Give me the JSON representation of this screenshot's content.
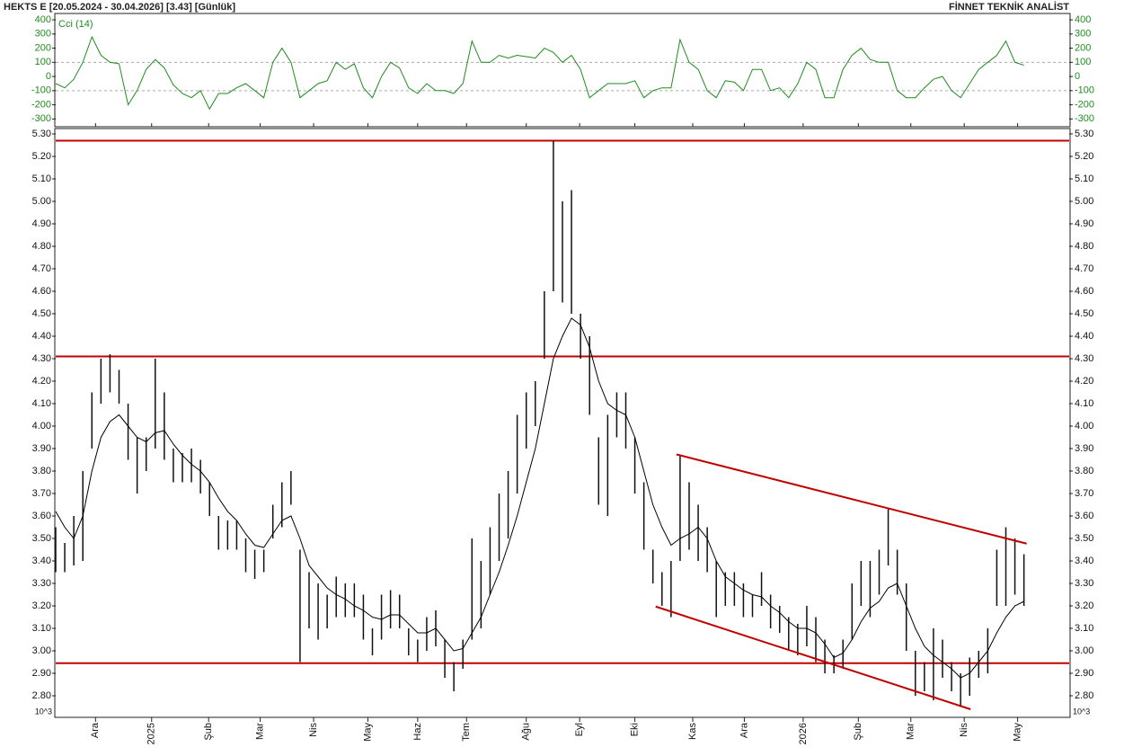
{
  "header": {
    "title": "HEKTS E  [20.05.2024 - 30.04.2026]  [3.43]  [Günlük]",
    "brand": "FİNNET TEKNİK ANALİST"
  },
  "chart_data": [
    {
      "type": "line",
      "label": "Cci (14)",
      "color": "#1e8c1e",
      "x": [
        0,
        1,
        2,
        3,
        4,
        5,
        6,
        7,
        8,
        9,
        10,
        11,
        12,
        13,
        14,
        15,
        16,
        17,
        18,
        19,
        20,
        21,
        22,
        23,
        24,
        25,
        26,
        27,
        28,
        29,
        30,
        31,
        32,
        33,
        34,
        35,
        36,
        37,
        38,
        39,
        40,
        41,
        42,
        43,
        44,
        45,
        46,
        47,
        48,
        49,
        50,
        51,
        52,
        53,
        54,
        55,
        56,
        57,
        58,
        59,
        60,
        61,
        62,
        63,
        64,
        65,
        66,
        67,
        68,
        69,
        70,
        71,
        72,
        73,
        74,
        75,
        76,
        77,
        78,
        79,
        80,
        81,
        82,
        83,
        84,
        85,
        86,
        87,
        88,
        89,
        90,
        91,
        92,
        93,
        94,
        95,
        96,
        97,
        98,
        99,
        100,
        101,
        102,
        103,
        104,
        105,
        106,
        107
      ],
      "values": [
        -50,
        -80,
        -20,
        100,
        280,
        150,
        100,
        90,
        -200,
        -100,
        50,
        120,
        60,
        -60,
        -120,
        -150,
        -100,
        -230,
        -120,
        -120,
        -80,
        -50,
        -100,
        -150,
        100,
        200,
        100,
        -150,
        -100,
        -50,
        -30,
        100,
        50,
        90,
        -80,
        -150,
        0,
        100,
        60,
        -80,
        -120,
        -50,
        -100,
        -100,
        -120,
        -50,
        250,
        100,
        100,
        150,
        130,
        150,
        140,
        130,
        200,
        170,
        100,
        150,
        50,
        -150,
        -100,
        -50,
        -50,
        -50,
        -30,
        -150,
        -100,
        -80,
        -80,
        260,
        100,
        50,
        -100,
        -150,
        -30,
        -40,
        -100,
        50,
        50,
        -100,
        -80,
        -150,
        -50,
        100,
        50,
        -150,
        -150,
        50,
        150,
        200,
        120,
        100,
        100,
        -100,
        -150,
        -150,
        -80,
        -20,
        0,
        -100,
        -150,
        -50,
        50,
        100,
        150,
        250,
        100,
        80
      ],
      "xlim": [
        0,
        112
      ],
      "ylim": [
        -355,
        445
      ],
      "yticks": [
        400,
        300,
        200,
        100,
        0,
        -100,
        -200,
        -300
      ],
      "ref_lines": [
        100,
        -100
      ]
    },
    {
      "type": "range_bar",
      "color": "#111111",
      "scale_label": "10^3",
      "x": [
        0,
        1,
        2,
        3,
        4,
        5,
        6,
        7,
        8,
        9,
        10,
        11,
        12,
        13,
        14,
        15,
        16,
        17,
        18,
        19,
        20,
        21,
        22,
        23,
        24,
        25,
        26,
        27,
        28,
        29,
        30,
        31,
        32,
        33,
        34,
        35,
        36,
        37,
        38,
        39,
        40,
        41,
        42,
        43,
        44,
        45,
        46,
        47,
        48,
        49,
        50,
        51,
        52,
        53,
        54,
        55,
        56,
        57,
        58,
        59,
        60,
        61,
        62,
        63,
        64,
        65,
        66,
        67,
        68,
        69,
        70,
        71,
        72,
        73,
        74,
        75,
        76,
        77,
        78,
        79,
        80,
        81,
        82,
        83,
        84,
        85,
        86,
        87,
        88,
        89,
        90,
        91,
        92,
        93,
        94,
        95,
        96,
        97,
        98,
        99,
        100,
        101,
        102,
        103,
        104,
        105,
        106,
        107
      ],
      "high": [
        3.55,
        3.48,
        3.6,
        3.8,
        4.15,
        4.3,
        4.32,
        4.25,
        4.1,
        3.95,
        3.95,
        4.3,
        4.15,
        3.9,
        3.88,
        3.9,
        3.85,
        3.75,
        3.6,
        3.58,
        3.58,
        3.5,
        3.45,
        3.45,
        3.65,
        3.75,
        3.8,
        3.45,
        3.35,
        3.3,
        3.25,
        3.33,
        3.3,
        3.3,
        3.25,
        3.1,
        3.25,
        3.27,
        3.25,
        3.1,
        3.05,
        3.15,
        3.18,
        3.05,
        2.95,
        3.05,
        3.5,
        3.4,
        3.55,
        3.7,
        3.8,
        4.05,
        4.15,
        4.2,
        4.6,
        5.27,
        5.0,
        5.05,
        4.5,
        4.4,
        3.95,
        4.05,
        4.15,
        4.15,
        3.95,
        3.75,
        3.45,
        3.35,
        3.4,
        3.87,
        3.75,
        3.65,
        3.55,
        3.4,
        3.35,
        3.35,
        3.3,
        3.25,
        3.35,
        3.25,
        3.2,
        3.15,
        3.12,
        3.2,
        3.15,
        3.05,
        2.98,
        3.05,
        3.3,
        3.4,
        3.4,
        3.45,
        3.63,
        3.45,
        3.3,
        3.0,
        2.95,
        3.1,
        3.05,
        2.95,
        2.9,
        2.97,
        3.0,
        3.1,
        3.45,
        3.55,
        3.5,
        3.43
      ],
      "low": [
        3.35,
        3.35,
        3.38,
        3.4,
        3.9,
        4.1,
        4.15,
        4.1,
        3.85,
        3.7,
        3.8,
        3.9,
        3.85,
        3.75,
        3.75,
        3.75,
        3.7,
        3.6,
        3.45,
        3.45,
        3.45,
        3.35,
        3.32,
        3.35,
        3.5,
        3.55,
        3.65,
        2.95,
        3.1,
        3.05,
        3.1,
        3.15,
        3.15,
        3.15,
        3.05,
        2.98,
        3.05,
        3.1,
        3.1,
        2.98,
        2.95,
        3.0,
        3.02,
        2.88,
        2.82,
        2.92,
        3.05,
        3.1,
        3.25,
        3.4,
        3.5,
        3.7,
        3.9,
        4.0,
        4.3,
        4.6,
        4.55,
        4.5,
        4.3,
        4.05,
        3.65,
        3.6,
        3.95,
        3.9,
        3.7,
        3.45,
        3.3,
        3.2,
        3.15,
        3.4,
        3.45,
        3.4,
        3.35,
        3.15,
        3.2,
        3.2,
        3.15,
        3.15,
        3.2,
        3.1,
        3.08,
        3.0,
        2.98,
        3.02,
        2.95,
        2.9,
        2.9,
        2.92,
        3.05,
        3.2,
        3.15,
        3.25,
        3.38,
        3.25,
        3.0,
        2.8,
        2.82,
        2.78,
        2.88,
        2.82,
        2.75,
        2.8,
        2.88,
        2.9,
        3.2,
        3.2,
        3.25,
        3.2
      ],
      "ma": {
        "color": "#000000",
        "values": [
          3.62,
          3.55,
          3.5,
          3.6,
          3.8,
          3.95,
          4.02,
          4.05,
          4.0,
          3.95,
          3.93,
          3.97,
          3.98,
          3.92,
          3.87,
          3.83,
          3.8,
          3.75,
          3.68,
          3.62,
          3.58,
          3.52,
          3.47,
          3.46,
          3.52,
          3.58,
          3.6,
          3.5,
          3.38,
          3.33,
          3.28,
          3.25,
          3.23,
          3.2,
          3.18,
          3.15,
          3.14,
          3.16,
          3.16,
          3.12,
          3.08,
          3.08,
          3.1,
          3.05,
          3.0,
          3.01,
          3.08,
          3.15,
          3.25,
          3.35,
          3.47,
          3.6,
          3.75,
          3.9,
          4.1,
          4.3,
          4.4,
          4.48,
          4.45,
          4.35,
          4.2,
          4.1,
          4.07,
          4.05,
          3.95,
          3.8,
          3.65,
          3.55,
          3.47,
          3.5,
          3.52,
          3.55,
          3.5,
          3.4,
          3.33,
          3.3,
          3.27,
          3.25,
          3.24,
          3.2,
          3.17,
          3.13,
          3.1,
          3.1,
          3.08,
          3.03,
          2.97,
          2.99,
          3.05,
          3.13,
          3.19,
          3.22,
          3.28,
          3.3,
          3.2,
          3.1,
          3.02,
          2.98,
          2.95,
          2.92,
          2.88,
          2.9,
          2.95,
          3.0,
          3.08,
          3.15,
          3.2,
          3.22
        ]
      },
      "hlines": {
        "color": "#c00000",
        "values": [
          5.27,
          4.31,
          2.945
        ]
      },
      "trendlines": {
        "color": "#c00000",
        "lines": [
          {
            "x": [
              68.6,
              107.3
            ],
            "y": [
              3.874,
              3.477
            ]
          },
          {
            "x": [
              66.3,
              101.1
            ],
            "y": [
              3.197,
              2.74
            ]
          }
        ]
      },
      "xlim": [
        0,
        112
      ],
      "ylim": [
        2.704,
        5.324
      ],
      "xticks": [
        {
          "value": 4.4,
          "label": "Ara"
        },
        {
          "value": 10.6,
          "label": "2025"
        },
        {
          "value": 16.9,
          "label": "Şub"
        },
        {
          "value": 22.6,
          "label": "Mar"
        },
        {
          "value": 28.5,
          "label": "Nis"
        },
        {
          "value": 34.5,
          "label": "May"
        },
        {
          "value": 40.0,
          "label": "Haz"
        },
        {
          "value": 45.4,
          "label": "Tem"
        },
        {
          "value": 52.0,
          "label": "Ağu"
        },
        {
          "value": 57.9,
          "label": "Eyl"
        },
        {
          "value": 64.0,
          "label": "Eki"
        },
        {
          "value": 70.4,
          "label": "Kas"
        },
        {
          "value": 76.1,
          "label": "Ara"
        },
        {
          "value": 82.6,
          "label": "2026"
        },
        {
          "value": 88.7,
          "label": "Şub"
        },
        {
          "value": 94.5,
          "label": "Mar"
        },
        {
          "value": 100.4,
          "label": "Nis"
        },
        {
          "value": 106.3,
          "label": "May"
        }
      ],
      "yticks": [
        {
          "value": 2.8,
          "label": "2.80"
        },
        {
          "value": 2.9,
          "label": "2.90"
        },
        {
          "value": 3.0,
          "label": "3.00"
        },
        {
          "value": 3.1,
          "label": "3.10"
        },
        {
          "value": 3.2,
          "label": "3.20"
        },
        {
          "value": 3.3,
          "label": "3.30"
        },
        {
          "value": 3.4,
          "label": "3.40"
        },
        {
          "value": 3.5,
          "label": "3.50"
        },
        {
          "value": 3.6,
          "label": "3.60"
        },
        {
          "value": 3.7,
          "label": "3.70"
        },
        {
          "value": 3.8,
          "label": "3.80"
        },
        {
          "value": 3.9,
          "label": "3.90"
        },
        {
          "value": 4.0,
          "label": "4.00"
        },
        {
          "value": 4.1,
          "label": "4.10"
        },
        {
          "value": 4.2,
          "label": "4.20"
        },
        {
          "value": 4.3,
          "label": "4.30"
        },
        {
          "value": 4.4,
          "label": "4.40"
        },
        {
          "value": 4.5,
          "label": "4.50"
        },
        {
          "value": 4.6,
          "label": "4.60"
        },
        {
          "value": 4.7,
          "label": "4.70"
        },
        {
          "value": 4.8,
          "label": "4.80"
        },
        {
          "value": 4.9,
          "label": "4.90"
        },
        {
          "value": 5.0,
          "label": "5.00"
        },
        {
          "value": 5.1,
          "label": "5.10"
        },
        {
          "value": 5.2,
          "label": "5.20"
        },
        {
          "value": 5.3,
          "label": "5.30"
        }
      ]
    }
  ]
}
